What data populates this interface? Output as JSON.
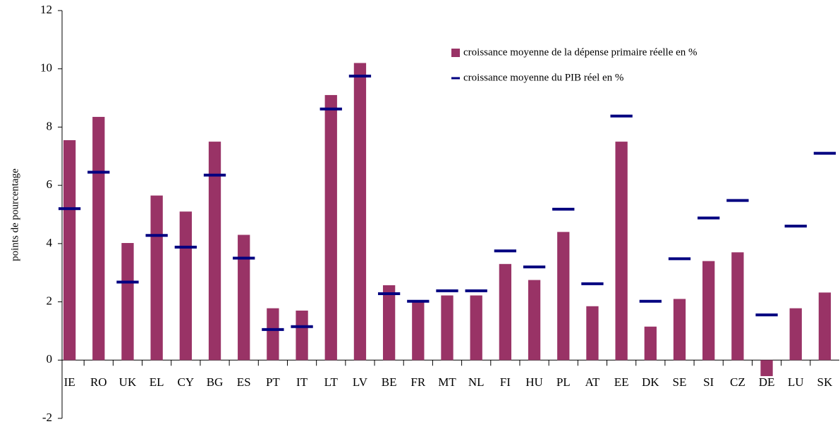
{
  "chart_data": {
    "type": "bar",
    "y_label": "points de pourcentage",
    "categories": [
      "IE",
      "RO",
      "UK",
      "EL",
      "CY",
      "BG",
      "ES",
      "PT",
      "IT",
      "LT",
      "LV",
      "BE",
      "FR",
      "MT",
      "NL",
      "FI",
      "HU",
      "PL",
      "AT",
      "EE",
      "DK",
      "SE",
      "SI",
      "CZ",
      "DE",
      "LU",
      "SK"
    ],
    "series": [
      {
        "name": "croissance moyenne de la dépense primaire réelle en %",
        "type": "bar",
        "color": "#993366",
        "values": [
          7.55,
          8.35,
          4.02,
          5.65,
          5.1,
          7.5,
          4.3,
          1.78,
          1.7,
          9.1,
          10.2,
          2.57,
          2.0,
          2.22,
          2.22,
          3.3,
          2.75,
          4.4,
          1.85,
          7.5,
          1.15,
          2.1,
          3.4,
          3.7,
          -0.55,
          1.78,
          2.32
        ]
      },
      {
        "name": "croissance moyenne du PIB réel en %",
        "type": "dash",
        "color": "#000080",
        "values": [
          5.2,
          6.45,
          2.68,
          4.28,
          3.88,
          6.35,
          3.5,
          1.05,
          1.15,
          8.62,
          9.75,
          2.28,
          2.02,
          2.38,
          2.38,
          3.75,
          3.2,
          5.18,
          2.62,
          8.38,
          2.02,
          3.48,
          4.88,
          5.48,
          1.55,
          4.6,
          7.1
        ]
      }
    ],
    "ylim": [
      -2,
      12
    ],
    "yticks": [
      -2,
      0,
      2,
      4,
      6,
      8,
      10,
      12
    ],
    "legend": "top-right"
  }
}
